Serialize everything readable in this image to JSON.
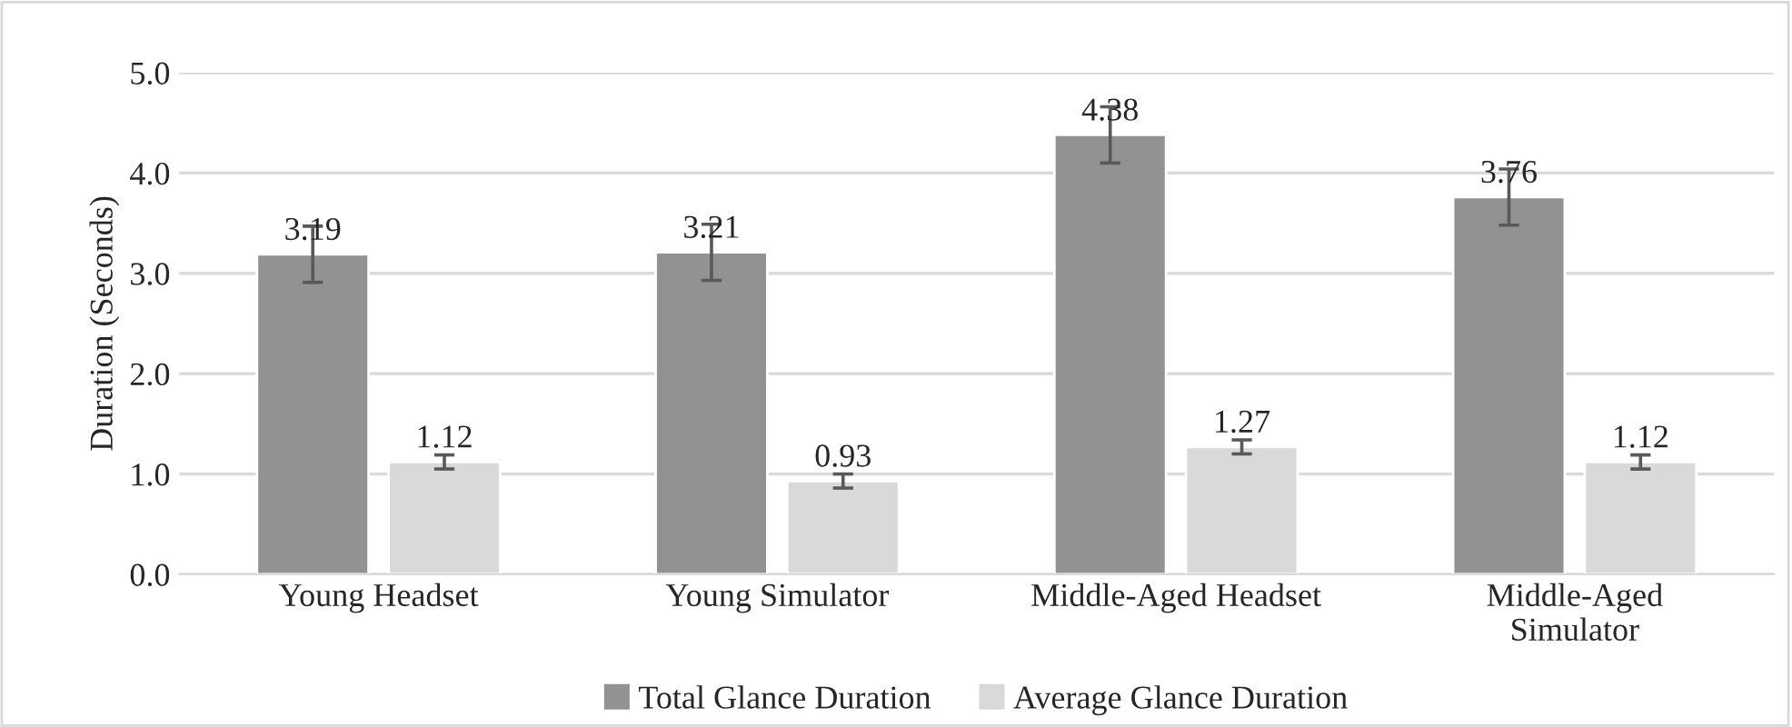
{
  "chart_data": {
    "type": "bar",
    "ylabel": "Duration (Seconds)",
    "categories": [
      "Young Headset",
      "Young Simulator",
      "Middle-Aged Headset",
      "Middle-Aged Simulator"
    ],
    "series": [
      {
        "name": "Total Glance Duration",
        "color": "#929292",
        "values": [
          3.19,
          3.21,
          4.38,
          3.76
        ],
        "errors": [
          0.28,
          0.28,
          0.28,
          0.28
        ]
      },
      {
        "name": "Average Glance Duration",
        "color": "#d9d9d9",
        "values": [
          1.12,
          0.93,
          1.27,
          1.12
        ],
        "errors": [
          0.07,
          0.07,
          0.07,
          0.07
        ]
      }
    ],
    "ylim": [
      0,
      5
    ],
    "yticks": [
      {
        "value": 0,
        "label": "0.0"
      },
      {
        "value": 1,
        "label": "1.0"
      },
      {
        "value": 2,
        "label": "2.0"
      },
      {
        "value": 3,
        "label": "3.0"
      },
      {
        "value": 4,
        "label": "4.0"
      },
      {
        "value": 5,
        "label": "5.0"
      }
    ],
    "grid": "y",
    "legend": "bottom",
    "data_labels": true
  }
}
